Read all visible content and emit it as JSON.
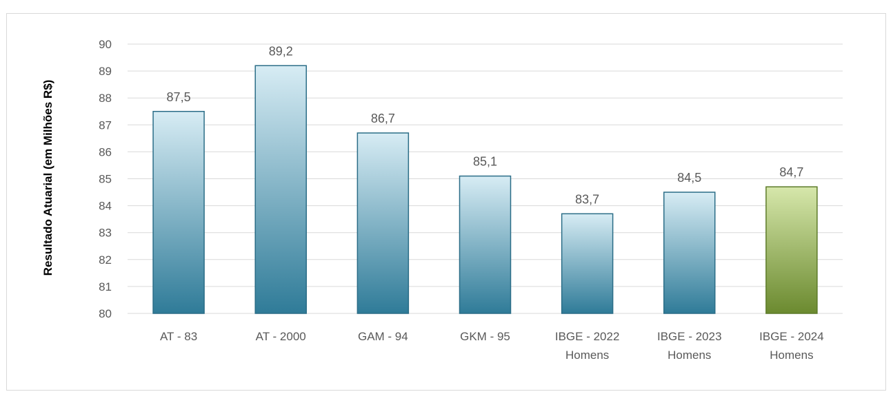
{
  "chart_data": {
    "type": "bar",
    "title": "",
    "xlabel": "",
    "ylabel": "Resultado Atuarial (em Milhões R$)",
    "categories": [
      [
        "AT - 83"
      ],
      [
        "AT - 2000"
      ],
      [
        "GAM - 94"
      ],
      [
        "GKM - 95"
      ],
      [
        "IBGE - 2022",
        "Homens"
      ],
      [
        "IBGE - 2023",
        "Homens"
      ],
      [
        "IBGE - 2024",
        "Homens"
      ]
    ],
    "values": [
      87.5,
      89.2,
      86.7,
      85.1,
      83.7,
      84.5,
      84.7
    ],
    "value_labels": [
      "87,5",
      "89,2",
      "86,7",
      "85,1",
      "83,7",
      "84,5",
      "84,7"
    ],
    "ylim": [
      80,
      90
    ],
    "yticks": [
      "80",
      "81",
      "82",
      "83",
      "84",
      "85",
      "86",
      "87",
      "88",
      "89",
      "90"
    ],
    "grid": true,
    "colors": {
      "bar_top": "#d7ecf4",
      "bar_bottom": "#2f7b98",
      "bar_stroke": "#2b6d87",
      "highlight_top": "#d6e7ab",
      "highlight_bottom": "#6b8a2f",
      "highlight_stroke": "#5c7a28",
      "grid": "#d9d9d9"
    },
    "highlight_index": 6
  }
}
